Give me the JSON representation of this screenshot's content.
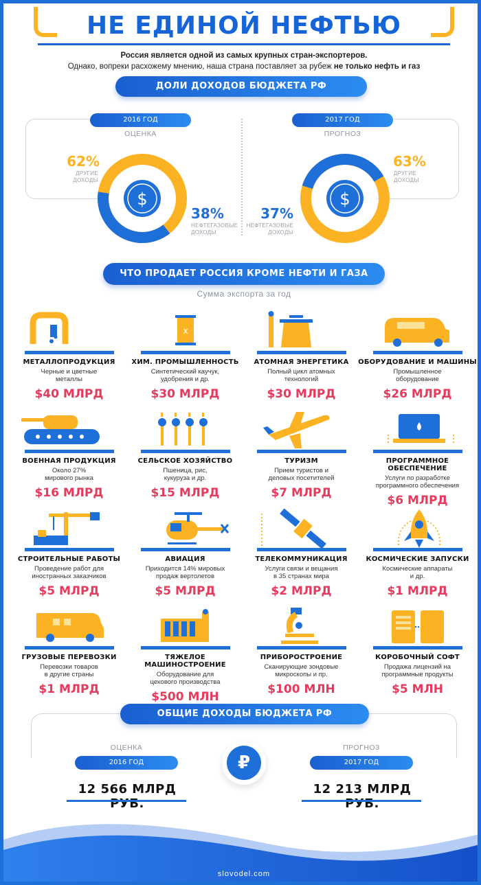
{
  "header": {
    "title": "НЕ ЕДИНОЙ НЕФТЬЮ",
    "intro_line1": "Россия является одной из самых крупных стран-экспортеров.",
    "intro_line2_plain": "Однако, вопреки расхожему мнению, наша страна поставляет за рубеж ",
    "intro_line2_bold": "не только нефть и газ"
  },
  "budget_shares": {
    "heading": "ДОЛИ ДОХОДОВ БЮДЖЕТА РФ",
    "years": [
      {
        "year": "2016 ГОД",
        "kind": "ОЦЕНКА",
        "other_pct": "62%",
        "other_label_1": "ДРУГИЕ",
        "other_label_2": "ДОХОДЫ",
        "oil_pct": "38%",
        "oil_label_1": "НЕФТЕГАЗОВЫЕ",
        "oil_label_2": "ДОХОДЫ",
        "other_value": 62,
        "oil_value": 38
      },
      {
        "year": "2017 ГОД",
        "kind": "ПРОГНОЗ",
        "other_pct": "63%",
        "other_label_1": "ДРУГИЕ",
        "other_label_2": "ДОХОДЫ",
        "oil_pct": "37%",
        "oil_label_1": "НЕФТЕГАЗОВЫЕ",
        "oil_label_2": "ДОХОДЫ",
        "other_value": 63,
        "oil_value": 37
      }
    ],
    "currency_symbol": "$"
  },
  "exports": {
    "heading": "ЧТО ПРОДАЕТ РОССИЯ КРОМЕ НЕФТИ И ГАЗА",
    "subheading": "Сумма экспорта за год",
    "items": [
      {
        "name": "МЕТАЛЛОПРОДУКЦИЯ",
        "desc1": "Черные и цветные",
        "desc2": "металлы",
        "value": "$40 МЛРД",
        "icon": "metal-pipe-icon"
      },
      {
        "name": "ХИМ. ПРОМЫШЛЕННОСТЬ",
        "desc1": "Синтетический каучук,",
        "desc2": "удобрения и др.",
        "value": "$30 МЛРД",
        "icon": "chemical-barrel-icon"
      },
      {
        "name": "АТОМНАЯ ЭНЕРГЕТИКА",
        "desc1": "Полный цикл атомных",
        "desc2": "технологий",
        "value": "$30 МЛРД",
        "icon": "nuclear-plant-icon"
      },
      {
        "name": "ОБОРУДОВАНИЕ И МАШИНЫ",
        "desc1": "Промышленное",
        "desc2": "оборудование",
        "value": "$26 МЛРД",
        "icon": "machine-truck-icon"
      },
      {
        "name": "ВОЕННАЯ ПРОДУКЦИЯ",
        "desc1": "Около 27%",
        "desc2": "мирового рынка",
        "value": "$16 МЛРД",
        "icon": "tank-icon"
      },
      {
        "name": "СЕЛЬСКОЕ ХОЗЯЙСТВО",
        "desc1": "Пшеница, рис,",
        "desc2": "кукуруза и др.",
        "value": "$15 МЛРД",
        "icon": "wheat-icon"
      },
      {
        "name": "ТУРИЗМ",
        "desc1": "Прием туристов и",
        "desc2": "деловых посетителей",
        "value": "$7 МЛРД",
        "icon": "airplane-icon"
      },
      {
        "name": "ПРОГРАММНОЕ ОБЕСПЕЧЕНИЕ",
        "desc1": "Услуги по разработке",
        "desc2": "программного обеспечения",
        "value": "$6 МЛРД",
        "icon": "laptop-icon"
      },
      {
        "name": "СТРОИТЕЛЬНЫЕ РАБОТЫ",
        "desc1": "Проведение работ для",
        "desc2": "иностранных заказчиков",
        "value": "$5 МЛРД",
        "icon": "crane-icon"
      },
      {
        "name": "АВИАЦИЯ",
        "desc1": "Приходится 14% мировых",
        "desc2": "продаж вертолетов",
        "value": "$5 МЛРД",
        "icon": "helicopter-icon"
      },
      {
        "name": "ТЕЛЕКОММУНИКАЦИЯ",
        "desc1": "Услуги связи и вещания",
        "desc2": "в 35 странах мира",
        "value": "$2 МЛРД",
        "icon": "satellite-icon"
      },
      {
        "name": "КОСМИЧЕСКИЕ ЗАПУСКИ",
        "desc1": "Космические аппараты",
        "desc2": "и др.",
        "value": "$1 МЛРД",
        "icon": "rocket-icon"
      },
      {
        "name": "ГРУЗОВЫЕ ПЕРЕВОЗКИ",
        "desc1": "Перевозки товаров",
        "desc2": "в другие страны",
        "value": "$1 МЛРД",
        "icon": "cargo-van-icon"
      },
      {
        "name": "ТЯЖЕЛОЕ МАШИНОСТРОЕНИЕ",
        "desc1": "Оборудование для",
        "desc2": "цехового производства",
        "value": "$500 МЛН",
        "icon": "factory-icon"
      },
      {
        "name": "ПРИБОРОСТРОЕНИЕ",
        "desc1": "Сканирующие зондовые",
        "desc2": "микроскопы и пр.",
        "value": "$100 МЛН",
        "icon": "microscope-icon"
      },
      {
        "name": "КОРОБОЧНЫЙ СОФТ",
        "desc1": "Продажа лицензий на",
        "desc2": "программные продукты",
        "value": "$5 МЛН",
        "icon": "software-box-icon"
      }
    ]
  },
  "totals": {
    "heading": "ОБЩИЕ ДОХОДЫ БЮДЖЕТА РФ",
    "left": {
      "kind": "ОЦЕНКА",
      "year": "2016 ГОД",
      "value": "12 566 МЛРД РУБ."
    },
    "right": {
      "kind": "ПРОГНОЗ",
      "year": "2017 ГОД",
      "value": "12 213 МЛРД РУБ."
    },
    "currency_symbol": "₽"
  },
  "footer": {
    "site": "slovodel.com"
  },
  "colors": {
    "blue": "#1f6fd8",
    "orange": "#fbb324",
    "red": "#e53b5c"
  }
}
